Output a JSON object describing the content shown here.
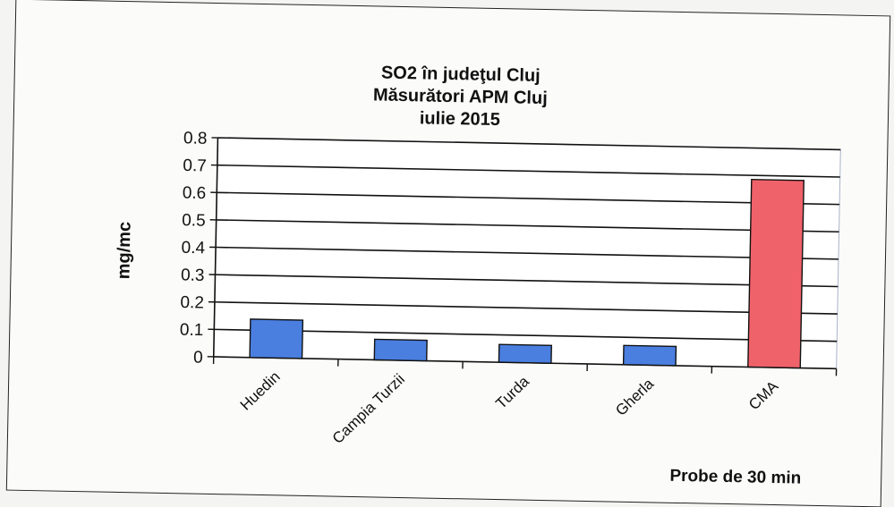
{
  "chart_data": {
    "type": "bar",
    "title": [
      "SO2 în judeţul Cluj",
      "Măsurători APM Cluj",
      "iulie 2015"
    ],
    "ylabel": "mg/mc",
    "xlabel": "Probe de 30 min",
    "categories": [
      "Huedin",
      "Campia Turzii",
      "Turda",
      "Gherla",
      "CMA"
    ],
    "values": [
      0.14,
      0.075,
      0.065,
      0.07,
      0.685
    ],
    "bar_colors": [
      "#4a7fe0",
      "#4a7fe0",
      "#4a7fe0",
      "#4a7fe0",
      "#f0626a"
    ],
    "ylim": [
      0,
      0.8
    ],
    "yticks": [
      "0",
      "0.1",
      "0.2",
      "0.3",
      "0.4",
      "0.5",
      "0.6",
      "0.7",
      "0.8"
    ],
    "grid": true,
    "legend": "none"
  }
}
